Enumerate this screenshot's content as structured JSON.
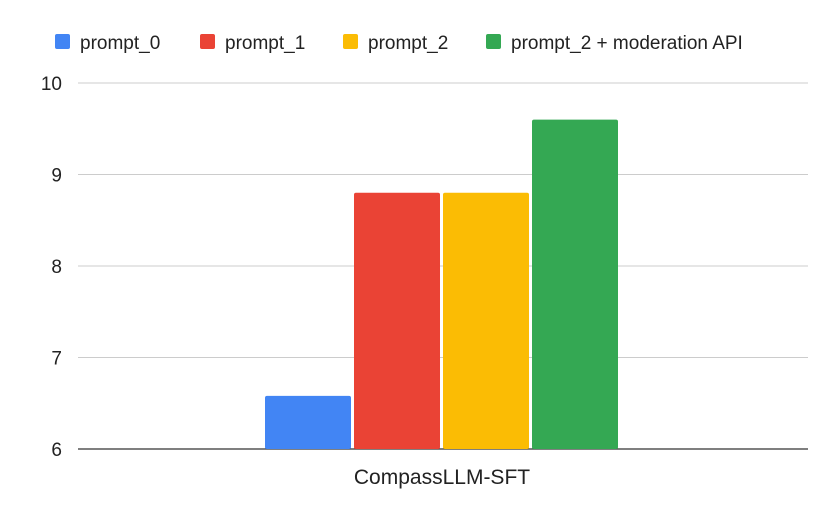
{
  "chart_data": {
    "type": "bar",
    "categories": [
      "CompassLLM-SFT"
    ],
    "series": [
      {
        "name": "prompt_0",
        "values": [
          6.58
        ],
        "color": "#4285F4"
      },
      {
        "name": "prompt_1",
        "values": [
          8.8
        ],
        "color": "#EA4335"
      },
      {
        "name": "prompt_2",
        "values": [
          8.8
        ],
        "color": "#FBBC04"
      },
      {
        "name": "prompt_2 + moderation API",
        "values": [
          9.6
        ],
        "color": "#34A853"
      }
    ],
    "yticks": [
      "6",
      "7",
      "8",
      "9",
      "10"
    ],
    "ylim": [
      6,
      10
    ],
    "grid": true,
    "legend_position": "top"
  }
}
